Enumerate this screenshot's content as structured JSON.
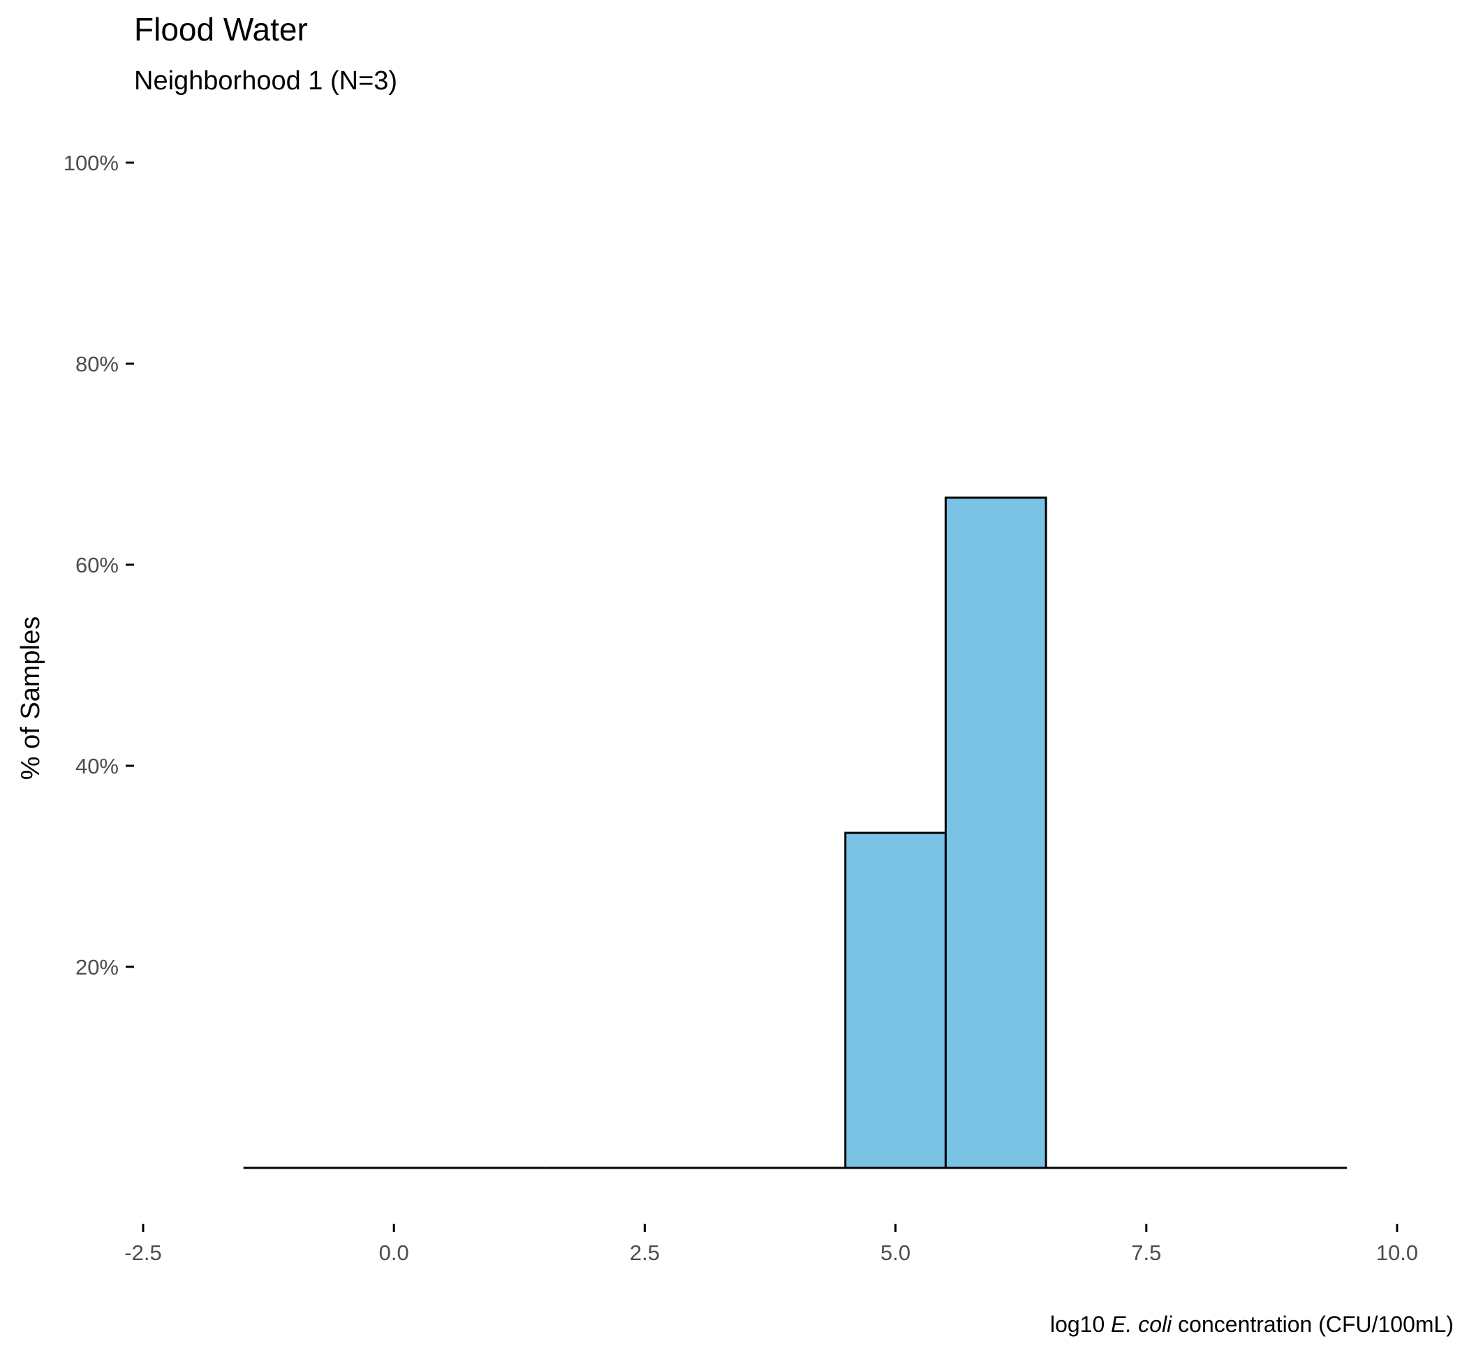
{
  "chart_data": {
    "type": "histogram",
    "title": "Flood Water",
    "subtitle": "Neighborhood 1 (N=3)",
    "xlabel_prefix": "log10 ",
    "xlabel_italic": "E. coli",
    "xlabel_suffix": " concentration (CFU/100mL)",
    "ylabel": "% of Samples",
    "xlim": [
      -2.5,
      10.0
    ],
    "ylim": [
      0,
      100
    ],
    "x_ticks": [
      "-2.5",
      "0.0",
      "2.5",
      "5.0",
      "7.5",
      "10.0"
    ],
    "x_tick_values": [
      -2.5,
      0.0,
      2.5,
      5.0,
      7.5,
      10.0
    ],
    "y_ticks": [
      "20%",
      "40%",
      "60%",
      "80%",
      "100%"
    ],
    "y_tick_values": [
      20,
      40,
      60,
      80,
      100
    ],
    "bin_width": 1,
    "bins": [
      {
        "start": -1.5,
        "end": -0.5,
        "value": 0
      },
      {
        "start": -0.5,
        "end": 0.5,
        "value": 0
      },
      {
        "start": 0.5,
        "end": 1.5,
        "value": 0
      },
      {
        "start": 1.5,
        "end": 2.5,
        "value": 0
      },
      {
        "start": 2.5,
        "end": 3.5,
        "value": 0
      },
      {
        "start": 3.5,
        "end": 4.5,
        "value": 0
      },
      {
        "start": 4.5,
        "end": 5.5,
        "value": 33.33
      },
      {
        "start": 5.5,
        "end": 6.5,
        "value": 66.67
      },
      {
        "start": 6.5,
        "end": 7.5,
        "value": 0
      },
      {
        "start": 7.5,
        "end": 8.5,
        "value": 0
      },
      {
        "start": 8.5,
        "end": 9.5,
        "value": 0
      }
    ],
    "fill_color": "#7bc3e4",
    "stroke_color": "#000000",
    "grid": false,
    "legend": "none"
  }
}
